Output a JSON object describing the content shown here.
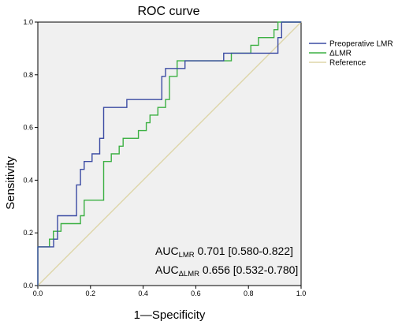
{
  "chart_data": {
    "type": "line",
    "title": "ROC curve",
    "xlabel": "1—Specificity",
    "ylabel": "Sensitivity",
    "xlim": [
      0.0,
      1.0
    ],
    "ylim": [
      0.0,
      1.0
    ],
    "xticks": [
      "0.0",
      "0.2",
      "0.4",
      "0.6",
      "0.8",
      "1.0"
    ],
    "yticks": [
      "0.0",
      "0.2",
      "0.4",
      "0.6",
      "0.8",
      "1.0"
    ],
    "grid": false,
    "legend_position": "right",
    "series": [
      {
        "name": "Preoperative LMR",
        "color": "#3b4ba3",
        "points": [
          [
            0,
            0
          ],
          [
            0,
            0.147
          ],
          [
            0.06,
            0.147
          ],
          [
            0.06,
            0.176
          ],
          [
            0.075,
            0.176
          ],
          [
            0.075,
            0.265
          ],
          [
            0.147,
            0.265
          ],
          [
            0.147,
            0.382
          ],
          [
            0.162,
            0.382
          ],
          [
            0.162,
            0.441
          ],
          [
            0.176,
            0.441
          ],
          [
            0.176,
            0.471
          ],
          [
            0.206,
            0.471
          ],
          [
            0.206,
            0.5
          ],
          [
            0.235,
            0.5
          ],
          [
            0.235,
            0.559
          ],
          [
            0.25,
            0.559
          ],
          [
            0.25,
            0.676
          ],
          [
            0.338,
            0.676
          ],
          [
            0.338,
            0.706
          ],
          [
            0.471,
            0.706
          ],
          [
            0.471,
            0.794
          ],
          [
            0.485,
            0.794
          ],
          [
            0.485,
            0.824
          ],
          [
            0.559,
            0.824
          ],
          [
            0.559,
            0.853
          ],
          [
            0.706,
            0.853
          ],
          [
            0.706,
            0.882
          ],
          [
            0.912,
            0.882
          ],
          [
            0.912,
            0.941
          ],
          [
            0.926,
            0.941
          ],
          [
            0.926,
            1.0
          ],
          [
            1.0,
            1.0
          ]
        ]
      },
      {
        "name": "ΔLMR",
        "color": "#3cb043",
        "points": [
          [
            0,
            0
          ],
          [
            0,
            0.147
          ],
          [
            0.044,
            0.147
          ],
          [
            0.044,
            0.176
          ],
          [
            0.059,
            0.176
          ],
          [
            0.059,
            0.206
          ],
          [
            0.088,
            0.206
          ],
          [
            0.088,
            0.235
          ],
          [
            0.162,
            0.235
          ],
          [
            0.162,
            0.265
          ],
          [
            0.176,
            0.265
          ],
          [
            0.176,
            0.324
          ],
          [
            0.25,
            0.324
          ],
          [
            0.25,
            0.471
          ],
          [
            0.279,
            0.471
          ],
          [
            0.279,
            0.5
          ],
          [
            0.309,
            0.5
          ],
          [
            0.309,
            0.529
          ],
          [
            0.324,
            0.529
          ],
          [
            0.324,
            0.559
          ],
          [
            0.382,
            0.559
          ],
          [
            0.382,
            0.588
          ],
          [
            0.412,
            0.588
          ],
          [
            0.412,
            0.618
          ],
          [
            0.426,
            0.618
          ],
          [
            0.426,
            0.647
          ],
          [
            0.456,
            0.647
          ],
          [
            0.456,
            0.676
          ],
          [
            0.485,
            0.676
          ],
          [
            0.485,
            0.706
          ],
          [
            0.5,
            0.706
          ],
          [
            0.5,
            0.794
          ],
          [
            0.529,
            0.794
          ],
          [
            0.529,
            0.853
          ],
          [
            0.735,
            0.853
          ],
          [
            0.735,
            0.882
          ],
          [
            0.809,
            0.882
          ],
          [
            0.809,
            0.912
          ],
          [
            0.838,
            0.912
          ],
          [
            0.838,
            0.941
          ],
          [
            0.897,
            0.941
          ],
          [
            0.897,
            0.971
          ],
          [
            0.912,
            0.971
          ],
          [
            0.912,
            1.0
          ],
          [
            1.0,
            1.0
          ]
        ]
      },
      {
        "name": "Reference",
        "color": "#ddd5a8",
        "points": [
          [
            0,
            0
          ],
          [
            1,
            1
          ]
        ]
      }
    ],
    "annotations": [
      {
        "prefix": "AUC",
        "subscript": "LMR",
        "text": " 0.701 [0.580-0.822]"
      },
      {
        "prefix": "AUC",
        "subscript": "ΔLMR",
        "text": " 0.656 [0.532-0.780]"
      }
    ]
  }
}
